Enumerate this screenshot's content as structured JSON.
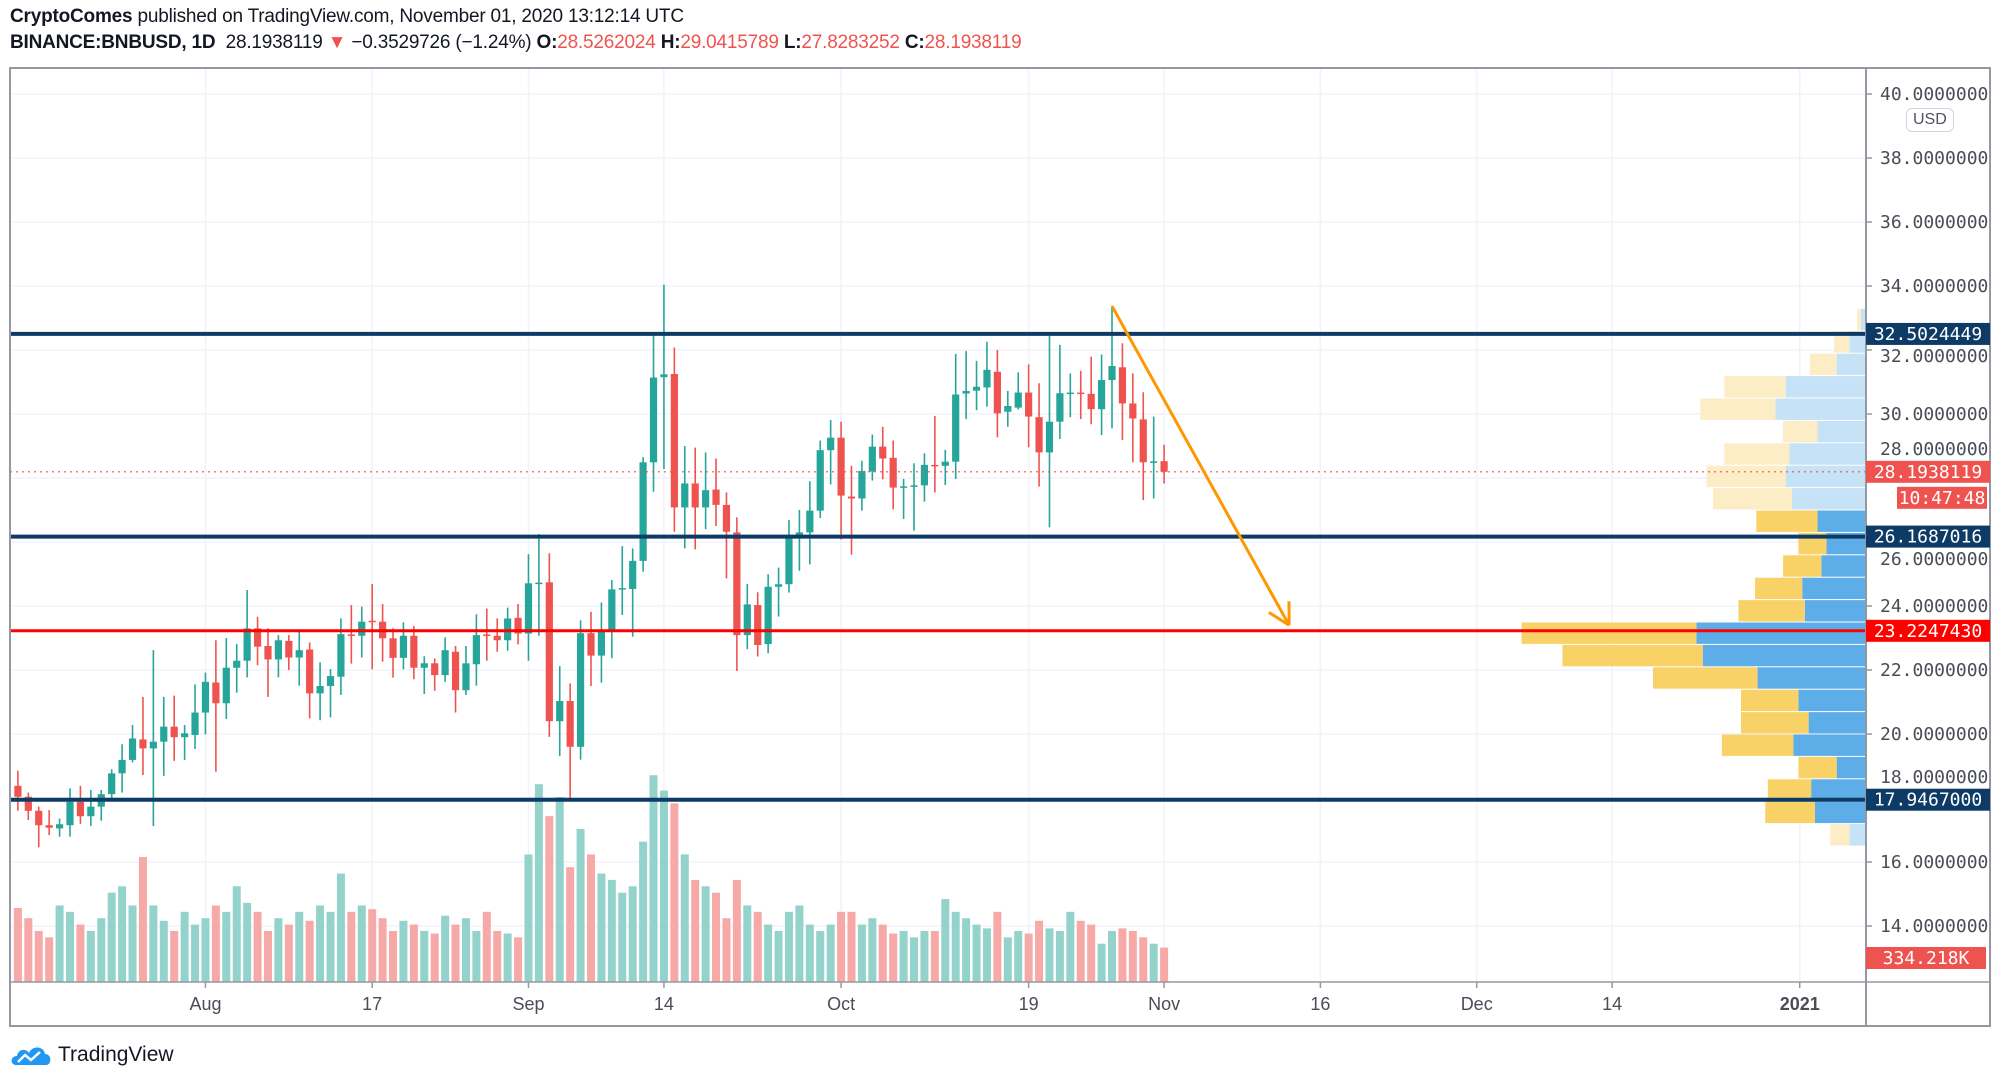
{
  "header": {
    "author": "CryptoComes",
    "published": "published on TradingView.com, November 01, 2020 13:12:14 UTC",
    "symbol": "BINANCE:BNBUSD, 1D",
    "last": "28.1938119",
    "change_arrow": "▼",
    "change": "−0.3529726 (−1.24%)",
    "o_label": "O:",
    "o": "28.5262024",
    "h_label": "H:",
    "h": "29.0415789",
    "l_label": "L:",
    "l": "27.8283252",
    "c_label": "C:",
    "c": "28.1938119"
  },
  "currency_badge": "USD",
  "logo_text": "TradingView",
  "colors": {
    "up": "#26a69a",
    "down": "#ef5350",
    "level": "#0d3b66",
    "poc_line": "#ff0000",
    "arrow": "#ff9800",
    "vp_up": "#5daee8",
    "vp_down": "#f9d267",
    "vp_up_light": "#c6e2f6",
    "vp_down_light": "#fdedc6"
  },
  "chart_data": {
    "type": "candlestick",
    "ylim": [
      13,
      40.5
    ],
    "y_ticks": [
      "14.0000000",
      "16.0000000",
      "18.0000000",
      "20.0000000",
      "22.0000000",
      "24.0000000",
      "26.0000000",
      "28.0000000",
      "30.0000000",
      "32.0000000",
      "34.0000000",
      "36.0000000",
      "38.0000000",
      "40.0000000"
    ],
    "x_ticks": [
      {
        "date": "2020-08-01",
        "label": "Aug"
      },
      {
        "date": "2020-08-17",
        "label": "17"
      },
      {
        "date": "2020-09-01",
        "label": "Sep"
      },
      {
        "date": "2020-09-14",
        "label": "14"
      },
      {
        "date": "2020-10-01",
        "label": "Oct"
      },
      {
        "date": "2020-10-19",
        "label": "19"
      },
      {
        "date": "2020-11-01",
        "label": "Nov"
      },
      {
        "date": "2020-11-16",
        "label": "16"
      },
      {
        "date": "2020-12-01",
        "label": "Dec"
      },
      {
        "date": "2020-12-14",
        "label": "14"
      },
      {
        "date": "2021-01-01",
        "label": "2021",
        "bold": true
      }
    ],
    "grid": true,
    "candles_fields": [
      "date",
      "open",
      "high",
      "low",
      "close",
      "volume_k"
    ],
    "candles": [
      [
        "2020-07-14",
        18.38,
        18.85,
        17.6,
        18.04,
        719
      ],
      [
        "2020-07-15",
        18.04,
        18.17,
        17.31,
        17.6,
        620
      ],
      [
        "2020-07-16",
        17.6,
        17.73,
        16.46,
        17.15,
        496
      ],
      [
        "2020-07-17",
        17.15,
        17.62,
        16.84,
        17.07,
        434
      ],
      [
        "2020-07-18",
        17.05,
        17.36,
        16.79,
        17.18,
        744
      ],
      [
        "2020-07-19",
        17.15,
        18.3,
        16.79,
        17.88,
        682
      ],
      [
        "2020-07-20",
        17.88,
        18.38,
        17.19,
        17.43,
        558
      ],
      [
        "2020-07-21",
        17.43,
        18.25,
        17.13,
        17.73,
        496
      ],
      [
        "2020-07-22",
        17.73,
        18.25,
        17.29,
        18.12,
        620
      ],
      [
        "2020-07-23",
        18.12,
        18.9,
        17.99,
        18.77,
        868
      ],
      [
        "2020-07-24",
        18.77,
        19.68,
        18.17,
        19.19,
        930
      ],
      [
        "2020-07-25",
        19.19,
        20.28,
        19.11,
        19.86,
        744
      ],
      [
        "2020-07-26",
        19.83,
        21.16,
        18.72,
        19.55,
        1215
      ],
      [
        "2020-07-27",
        19.55,
        22.62,
        17.12,
        19.76,
        744
      ],
      [
        "2020-07-28",
        19.76,
        21.16,
        18.69,
        20.23,
        595
      ],
      [
        "2020-07-29",
        20.23,
        21.2,
        19.16,
        19.9,
        496
      ],
      [
        "2020-07-30",
        19.9,
        20.28,
        19.19,
        20.02,
        682
      ],
      [
        "2020-07-31",
        19.97,
        21.55,
        19.53,
        20.67,
        558
      ],
      [
        "2020-08-01",
        20.67,
        21.92,
        19.99,
        21.63,
        620
      ],
      [
        "2020-08-02",
        21.61,
        22.93,
        18.82,
        20.96,
        744
      ],
      [
        "2020-08-03",
        20.96,
        23.0,
        20.47,
        22.07,
        682
      ],
      [
        "2020-08-04",
        22.07,
        22.81,
        21.29,
        22.29,
        930
      ],
      [
        "2020-08-05",
        22.29,
        24.5,
        21.77,
        23.3,
        769
      ],
      [
        "2020-08-06",
        23.3,
        23.66,
        22.15,
        22.73,
        682
      ],
      [
        "2020-08-07",
        22.75,
        23.3,
        21.16,
        22.33,
        496
      ],
      [
        "2020-08-08",
        22.33,
        23.09,
        21.77,
        22.93,
        620
      ],
      [
        "2020-08-09",
        22.91,
        23.09,
        22.0,
        22.39,
        558
      ],
      [
        "2020-08-10",
        22.39,
        23.27,
        21.51,
        22.62,
        682
      ],
      [
        "2020-08-11",
        22.64,
        22.86,
        20.49,
        21.27,
        595
      ],
      [
        "2020-08-12",
        21.27,
        22.24,
        20.43,
        21.5,
        744
      ],
      [
        "2020-08-13",
        21.5,
        22.03,
        20.52,
        21.81,
        682
      ],
      [
        "2020-08-14",
        21.79,
        23.61,
        21.22,
        23.12,
        1054
      ],
      [
        "2020-08-15",
        23.11,
        24.03,
        22.2,
        23.07,
        682
      ],
      [
        "2020-08-16",
        23.07,
        23.98,
        22.39,
        23.51,
        744
      ],
      [
        "2020-08-17",
        23.54,
        24.69,
        22.02,
        23.51,
        707
      ],
      [
        "2020-08-18",
        23.51,
        24.06,
        22.26,
        22.99,
        620
      ],
      [
        "2020-08-19",
        22.99,
        23.3,
        21.76,
        22.38,
        496
      ],
      [
        "2020-08-20",
        22.38,
        23.49,
        22.02,
        23.07,
        595
      ],
      [
        "2020-08-21",
        23.07,
        23.37,
        21.71,
        22.07,
        558
      ],
      [
        "2020-08-22",
        22.07,
        22.43,
        21.25,
        22.21,
        496
      ],
      [
        "2020-08-23",
        22.21,
        22.36,
        21.35,
        21.84,
        471
      ],
      [
        "2020-08-24",
        21.84,
        23.02,
        21.63,
        22.62,
        645
      ],
      [
        "2020-08-25",
        22.57,
        22.75,
        20.67,
        21.37,
        558
      ],
      [
        "2020-08-26",
        21.37,
        22.75,
        21.22,
        22.21,
        620
      ],
      [
        "2020-08-27",
        22.18,
        23.74,
        21.51,
        23.09,
        496
      ],
      [
        "2020-08-28",
        23.11,
        23.92,
        22.29,
        23.07,
        682
      ],
      [
        "2020-08-29",
        23.07,
        23.61,
        22.57,
        22.93,
        496
      ],
      [
        "2020-08-30",
        22.93,
        23.95,
        22.6,
        23.61,
        471
      ],
      [
        "2020-08-31",
        23.63,
        24.06,
        22.8,
        23.14,
        434
      ],
      [
        "2020-09-01",
        23.14,
        25.62,
        22.29,
        24.71,
        1240
      ],
      [
        "2020-09-02",
        24.71,
        26.25,
        23.07,
        24.73,
        1922
      ],
      [
        "2020-09-03",
        24.74,
        25.65,
        19.91,
        20.4,
        1612
      ],
      [
        "2020-09-04",
        20.4,
        22.12,
        19.31,
        21.03,
        1798
      ],
      [
        "2020-09-05",
        21.03,
        21.58,
        18.0,
        19.6,
        1116
      ],
      [
        "2020-09-06",
        19.6,
        23.55,
        19.2,
        23.15,
        1488
      ],
      [
        "2020-09-07",
        23.15,
        23.82,
        21.5,
        22.45,
        1240
      ],
      [
        "2020-09-08",
        22.45,
        24.11,
        21.6,
        23.25,
        1054
      ],
      [
        "2020-09-09",
        23.25,
        24.81,
        22.37,
        24.52,
        992
      ],
      [
        "2020-09-10",
        24.52,
        25.87,
        23.72,
        24.56,
        868
      ],
      [
        "2020-09-11",
        24.53,
        25.8,
        23.04,
        25.41,
        930
      ],
      [
        "2020-09-12",
        25.41,
        28.65,
        25.07,
        28.49,
        1364
      ],
      [
        "2020-09-13",
        28.49,
        32.47,
        27.57,
        31.14,
        2009
      ],
      [
        "2020-09-14",
        31.15,
        34.04,
        28.28,
        31.24,
        1860
      ],
      [
        "2020-09-15",
        31.25,
        32.08,
        26.32,
        27.08,
        1736
      ],
      [
        "2020-09-16",
        27.08,
        29.0,
        25.8,
        27.83,
        1240
      ],
      [
        "2020-09-17",
        27.83,
        28.95,
        25.77,
        27.08,
        992
      ],
      [
        "2020-09-18",
        27.08,
        28.8,
        26.4,
        27.62,
        930
      ],
      [
        "2020-09-19",
        27.64,
        28.61,
        26.5,
        27.16,
        868
      ],
      [
        "2020-09-20",
        27.16,
        27.55,
        24.86,
        26.32,
        620
      ],
      [
        "2020-09-21",
        26.3,
        26.77,
        21.97,
        23.09,
        992
      ],
      [
        "2020-09-22",
        23.09,
        24.69,
        22.65,
        24.05,
        744
      ],
      [
        "2020-09-23",
        24.03,
        24.43,
        22.42,
        22.78,
        682
      ],
      [
        "2020-09-24",
        22.81,
        24.99,
        22.52,
        24.6,
        558
      ],
      [
        "2020-09-25",
        24.6,
        25.2,
        23.67,
        24.68,
        496
      ],
      [
        "2020-09-26",
        24.68,
        26.69,
        24.42,
        26.17,
        682
      ],
      [
        "2020-09-27",
        26.17,
        27.0,
        25.1,
        26.3,
        744
      ],
      [
        "2020-09-28",
        26.3,
        27.9,
        25.3,
        26.98,
        558
      ],
      [
        "2020-09-29",
        26.98,
        29.17,
        26.75,
        28.87,
        496
      ],
      [
        "2020-09-30",
        28.87,
        29.81,
        27.8,
        29.26,
        558
      ],
      [
        "2020-10-01",
        29.26,
        29.76,
        26.08,
        27.45,
        682
      ],
      [
        "2020-10-02",
        27.42,
        28.38,
        25.6,
        27.36,
        682
      ],
      [
        "2020-10-03",
        27.36,
        28.54,
        26.98,
        28.22,
        558
      ],
      [
        "2020-10-04",
        28.2,
        29.36,
        27.92,
        28.98,
        620
      ],
      [
        "2020-10-05",
        28.98,
        29.6,
        27.96,
        28.61,
        558
      ],
      [
        "2020-10-06",
        28.63,
        29.17,
        27.02,
        27.7,
        471
      ],
      [
        "2020-10-07",
        27.7,
        27.97,
        26.72,
        27.74,
        496
      ],
      [
        "2020-10-08",
        27.73,
        28.46,
        26.35,
        27.77,
        434
      ],
      [
        "2020-10-09",
        27.77,
        28.77,
        27.26,
        28.41,
        496
      ],
      [
        "2020-10-10",
        28.41,
        29.94,
        27.55,
        28.38,
        496
      ],
      [
        "2020-10-11",
        28.38,
        28.88,
        27.78,
        28.51,
        806
      ],
      [
        "2020-10-12",
        28.51,
        31.88,
        27.97,
        30.61,
        682
      ],
      [
        "2020-10-13",
        30.64,
        31.97,
        29.84,
        30.72,
        620
      ],
      [
        "2020-10-14",
        30.73,
        31.66,
        30.12,
        30.85,
        558
      ],
      [
        "2020-10-15",
        30.83,
        32.26,
        30.23,
        31.38,
        521
      ],
      [
        "2020-10-16",
        31.32,
        32.0,
        29.27,
        30.02,
        682
      ],
      [
        "2020-10-17",
        30.07,
        30.72,
        29.6,
        30.25,
        434
      ],
      [
        "2020-10-18",
        30.2,
        31.3,
        30.14,
        30.67,
        496
      ],
      [
        "2020-10-19",
        30.67,
        31.55,
        28.96,
        29.92,
        471
      ],
      [
        "2020-10-20",
        29.9,
        30.96,
        27.73,
        28.8,
        595
      ],
      [
        "2020-10-21",
        28.8,
        32.44,
        26.46,
        29.76,
        521
      ],
      [
        "2020-10-22",
        29.76,
        32.16,
        29.22,
        30.65,
        496
      ],
      [
        "2020-10-23",
        30.63,
        31.27,
        29.9,
        30.67,
        682
      ],
      [
        "2020-10-24",
        30.67,
        31.35,
        29.84,
        30.63,
        595
      ],
      [
        "2020-10-25",
        30.63,
        31.79,
        29.68,
        30.15,
        558
      ],
      [
        "2020-10-26",
        30.15,
        31.86,
        29.34,
        31.06,
        372
      ],
      [
        "2020-10-27",
        31.06,
        33.37,
        29.55,
        31.5,
        496
      ],
      [
        "2020-10-28",
        31.46,
        32.21,
        29.19,
        30.33,
        521
      ],
      [
        "2020-10-29",
        30.33,
        31.27,
        28.49,
        29.86,
        496
      ],
      [
        "2020-10-30",
        29.83,
        30.68,
        27.31,
        28.49,
        434
      ],
      [
        "2020-10-31",
        28.49,
        29.92,
        27.36,
        28.52,
        372
      ],
      [
        "2020-11-01",
        28.5262024,
        29.0415789,
        27.8283252,
        28.1938119,
        334.218
      ]
    ],
    "volume_profile": {
      "bin_size": 0.7,
      "rows_fields": [
        "price_low",
        "up_volume",
        "down_volume",
        "in_value_area"
      ],
      "rows": [
        [
          16.5,
          13,
          15,
          false
        ],
        [
          17.2,
          40,
          39,
          true
        ],
        [
          17.9,
          43,
          34,
          true
        ],
        [
          18.6,
          23,
          30,
          true
        ],
        [
          19.3,
          57,
          56,
          true
        ],
        [
          20.0,
          45,
          53,
          true
        ],
        [
          20.7,
          53,
          45,
          true
        ],
        [
          21.4,
          85,
          82,
          true
        ],
        [
          22.1,
          128,
          110,
          true
        ],
        [
          22.8,
          133,
          137,
          true
        ],
        [
          23.5,
          48,
          52,
          true
        ],
        [
          24.2,
          50,
          37,
          true
        ],
        [
          24.9,
          35,
          30,
          true
        ],
        [
          25.6,
          31,
          22,
          true
        ],
        [
          26.3,
          38,
          48,
          true
        ],
        [
          27.0,
          58,
          62,
          false
        ],
        [
          27.7,
          63,
          62,
          false
        ],
        [
          28.4,
          60,
          51,
          false
        ],
        [
          29.1,
          38,
          27,
          false
        ],
        [
          29.8,
          71,
          59,
          false
        ],
        [
          30.5,
          63,
          48,
          false
        ],
        [
          31.2,
          23,
          21,
          false
        ],
        [
          31.9,
          13,
          12,
          false
        ],
        [
          32.6,
          4,
          3,
          false
        ]
      ]
    },
    "levels": [
      {
        "price": 32.5024449,
        "label": "32.5024449",
        "kind": "resistance"
      },
      {
        "price": 26.1687016,
        "label": "26.1687016",
        "kind": "support"
      },
      {
        "price": 17.9467,
        "label": "17.9467000",
        "kind": "support"
      },
      {
        "price": 23.224743,
        "label": "23.2247430",
        "kind": "poc"
      }
    ],
    "last_price": {
      "price": 28.1938119,
      "label": "28.1938119",
      "countdown": "10:47:48"
    },
    "last_volume_label": "334.218K",
    "arrow": {
      "from": {
        "date": "2020-10-27",
        "price": 33.37
      },
      "to": {
        "date": "2020-11-13",
        "price": 23.4
      }
    }
  }
}
